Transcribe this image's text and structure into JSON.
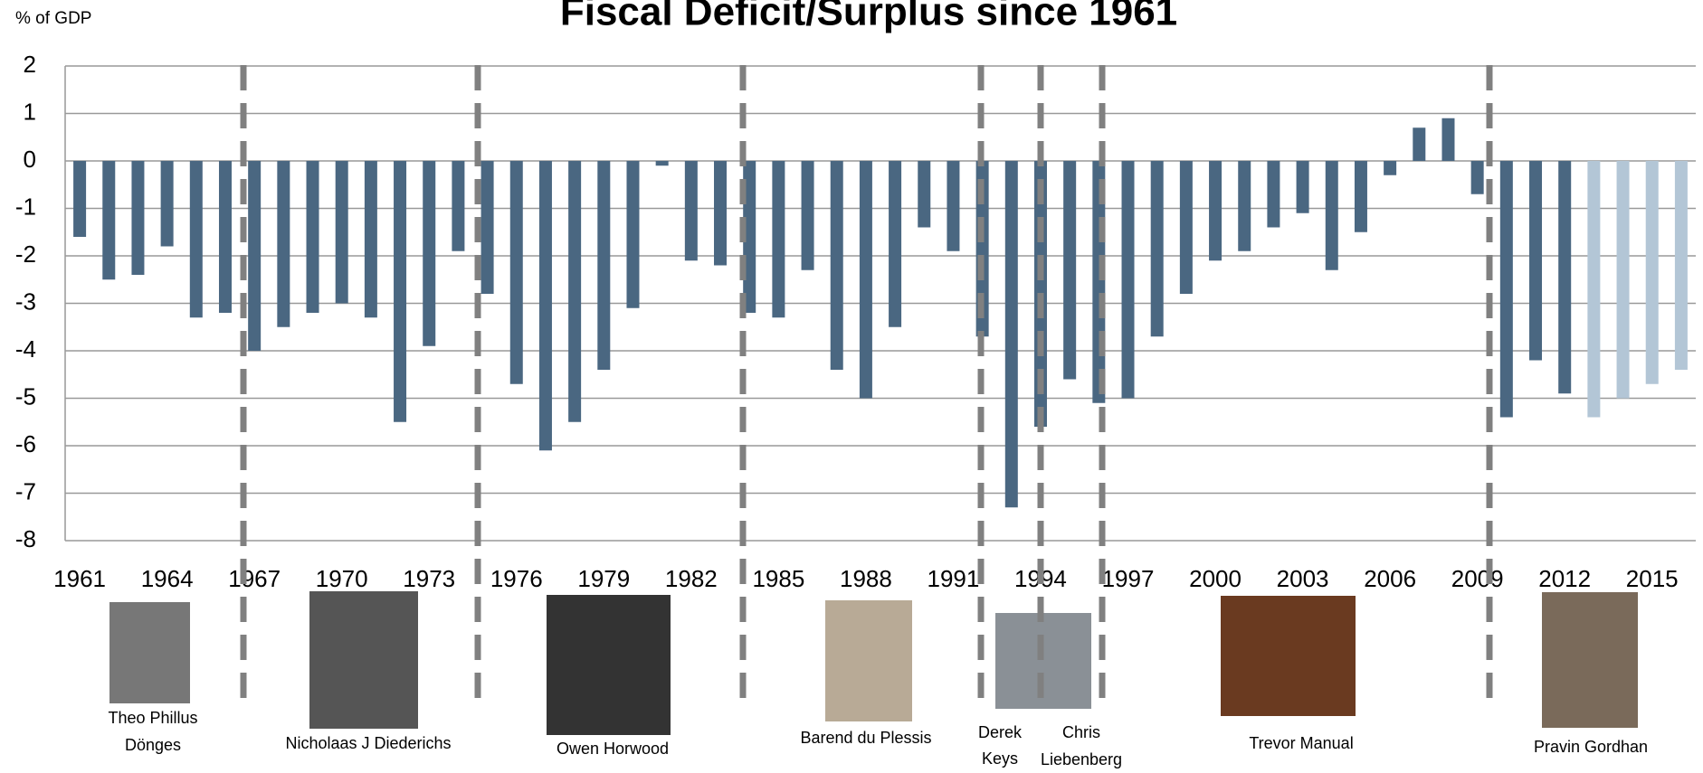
{
  "chart_data": {
    "type": "bar",
    "title": "Fiscal Deficit/Surplus since 1961",
    "y_label": "% of GDP",
    "categories": [
      "1961",
      null,
      null,
      "1964",
      null,
      null,
      "1967",
      null,
      null,
      "1970",
      null,
      null,
      "1973",
      null,
      null,
      "1976",
      null,
      null,
      "1979",
      null,
      null,
      "1982",
      null,
      null,
      "1985",
      null,
      null,
      "1988",
      null,
      null,
      "1991",
      null,
      null,
      "1994",
      null,
      null,
      "1997",
      null,
      null,
      "2000",
      null,
      null,
      "2003",
      null,
      null,
      "2006",
      null,
      null,
      "2009",
      null,
      null,
      "2012",
      null,
      null,
      "2015",
      null
    ],
    "values": [
      -1.6,
      -2.5,
      -2.4,
      -1.8,
      -3.3,
      -3.2,
      -4.0,
      -3.5,
      -3.2,
      -3.0,
      -3.3,
      -5.5,
      -3.9,
      -1.9,
      -2.8,
      -4.7,
      -6.1,
      -5.5,
      -4.4,
      -3.1,
      -0.1,
      -2.1,
      -2.2,
      -3.2,
      -3.3,
      -2.3,
      -4.4,
      -5.0,
      -3.5,
      -1.4,
      -1.9,
      -3.7,
      -7.3,
      -5.6,
      -4.6,
      -5.1,
      -5.0,
      -3.7,
      -2.8,
      -2.1,
      -1.9,
      -1.4,
      -1.1,
      -2.3,
      -1.5,
      -0.3,
      0.7,
      0.9,
      -0.7,
      -5.4,
      -4.2,
      -4.9,
      -5.4,
      -5.0,
      -4.7,
      -4.4
    ],
    "colors": [
      "#4a6781",
      "#4a6781",
      "#4a6781",
      "#4a6781",
      "#4a6781",
      "#4a6781",
      "#4a6781",
      "#4a6781",
      "#4a6781",
      "#4a6781",
      "#4a6781",
      "#4a6781",
      "#4a6781",
      "#4a6781",
      "#4a6781",
      "#4a6781",
      "#4a6781",
      "#4a6781",
      "#4a6781",
      "#4a6781",
      "#4a6781",
      "#4a6781",
      "#4a6781",
      "#4a6781",
      "#4a6781",
      "#4a6781",
      "#4a6781",
      "#4a6781",
      "#4a6781",
      "#4a6781",
      "#4a6781",
      "#4a6781",
      "#4a6781",
      "#4a6781",
      "#4a6781",
      "#4a6781",
      "#4a6781",
      "#4a6781",
      "#4a6781",
      "#4a6781",
      "#4a6781",
      "#4a6781",
      "#4a6781",
      "#4a6781",
      "#4a6781",
      "#4a6781",
      "#4a6781",
      "#4a6781",
      "#4a6781",
      "#4a6781",
      "#4a6781",
      "#4a6781",
      "#b3c6d6",
      "#b3c6d6",
      "#b3c6d6",
      "#b3c6d6"
    ],
    "ylim": [
      -8,
      2
    ],
    "yticks": [
      -8,
      -7,
      -6,
      -5,
      -4,
      -3,
      -2,
      -1,
      0,
      1,
      2
    ],
    "grid": true,
    "annotations": [
      [
        "Theo Phillus",
        "Dönges"
      ],
      [
        "Nicholaas J Diederichs"
      ],
      [
        "Owen Horwood"
      ],
      [
        "Barend du Plessis"
      ],
      [
        "Derek",
        "Keys"
      ],
      [
        "Chris",
        "Liebenberg"
      ],
      [
        "Trevor Manual"
      ],
      [
        "Pravin Gordhan"
      ]
    ]
  }
}
